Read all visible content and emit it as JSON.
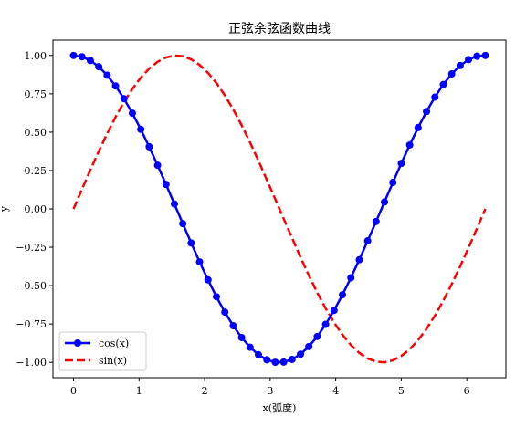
{
  "chart_data": {
    "type": "line",
    "title": "正弦余弦函数曲线",
    "xlabel": "x(弧度)",
    "ylabel": "y",
    "xlim": [
      -0.314,
      6.597
    ],
    "ylim": [
      -1.1,
      1.1
    ],
    "xticks": [
      0,
      1,
      2,
      3,
      4,
      5,
      6
    ],
    "yticks": [
      -1.0,
      -0.75,
      -0.5,
      -0.25,
      0.0,
      0.25,
      0.5,
      0.75,
      1.0
    ],
    "ytick_labels": [
      "−1.00",
      "−0.75",
      "−0.50",
      "−0.25",
      "0.00",
      "0.25",
      "0.50",
      "0.75",
      "1.00"
    ],
    "grid": false,
    "legend_position": "lower-left",
    "series": [
      {
        "name": "cos(x)",
        "color": "#0000ff",
        "style": "solid",
        "marker": "circle",
        "x": [
          0.0,
          0.1282,
          0.2565,
          0.3847,
          0.5129,
          0.6411,
          0.7694,
          0.8976,
          1.0258,
          1.1541,
          1.2823,
          1.4105,
          1.5387,
          1.667,
          1.7952,
          1.9234,
          2.0517,
          2.1799,
          2.3081,
          2.4363,
          2.5646,
          2.6928,
          2.821,
          2.9493,
          3.0775,
          3.2057,
          3.3339,
          3.4622,
          3.5904,
          3.7186,
          3.8468,
          3.9751,
          4.1033,
          4.2315,
          4.3598,
          4.488,
          4.6162,
          4.7444,
          4.8727,
          5.0009,
          5.1291,
          5.2574,
          5.3856,
          5.5138,
          5.642,
          5.7703,
          5.8985,
          6.0267,
          6.155,
          6.2832
        ],
        "y": [
          1.0,
          0.9918,
          0.9673,
          0.9269,
          0.8713,
          0.8014,
          0.7183,
          0.6235,
          0.5184,
          0.4048,
          0.2845,
          0.1596,
          0.0321,
          -0.096,
          -0.2225,
          -0.3455,
          -0.4625,
          -0.5721,
          -0.6723,
          -0.7614,
          -0.8382,
          -0.9014,
          -0.9501,
          -0.9836,
          -0.9995,
          -0.9982,
          -0.9808,
          -0.9471,
          -0.897,
          -0.8315,
          -0.7522,
          -0.6612,
          -0.5596,
          -0.4489,
          -0.3312,
          -0.2083,
          -0.0822,
          0.0452,
          0.1721,
          0.2966,
          0.4165,
          0.5297,
          0.6344,
          0.7287,
          0.811,
          0.8799,
          0.9342,
          0.9728,
          0.9951,
          1.0
        ]
      },
      {
        "name": "sin(x)",
        "color": "#ff0000",
        "style": "dashed",
        "marker": "none",
        "x": [
          0.0,
          0.1282,
          0.2565,
          0.3847,
          0.5129,
          0.6411,
          0.7694,
          0.8976,
          1.0258,
          1.1541,
          1.2823,
          1.4105,
          1.5387,
          1.667,
          1.7952,
          1.9234,
          2.0517,
          2.1799,
          2.3081,
          2.4363,
          2.5646,
          2.6928,
          2.821,
          2.9493,
          3.0775,
          3.2057,
          3.3339,
          3.4622,
          3.5904,
          3.7186,
          3.8468,
          3.9751,
          4.1033,
          4.2315,
          4.3598,
          4.488,
          4.6162,
          4.7444,
          4.8727,
          5.0009,
          5.1291,
          5.2574,
          5.3856,
          5.5138,
          5.642,
          5.7703,
          5.8985,
          6.0267,
          6.155,
          6.2832
        ],
        "y": [
          0.0,
          0.1279,
          0.2537,
          0.3753,
          0.4907,
          0.598,
          0.6957,
          0.7818,
          0.8551,
          0.9144,
          0.9587,
          0.9872,
          0.9995,
          0.9954,
          0.9749,
          0.9384,
          0.8866,
          0.8202,
          0.7403,
          0.6483,
          0.5454,
          0.4334,
          0.3139,
          0.189,
          0.0641,
          -0.0641,
          -0.189,
          -0.3139,
          -0.4334,
          -0.5454,
          -0.6483,
          -0.7403,
          -0.8202,
          -0.8866,
          -0.9384,
          -0.9749,
          -0.9954,
          -0.9995,
          -0.9872,
          -0.9587,
          -0.9144,
          -0.8551,
          -0.7818,
          -0.6957,
          -0.598,
          -0.4907,
          -0.3753,
          -0.2537,
          -0.1279,
          0.0
        ]
      }
    ]
  }
}
